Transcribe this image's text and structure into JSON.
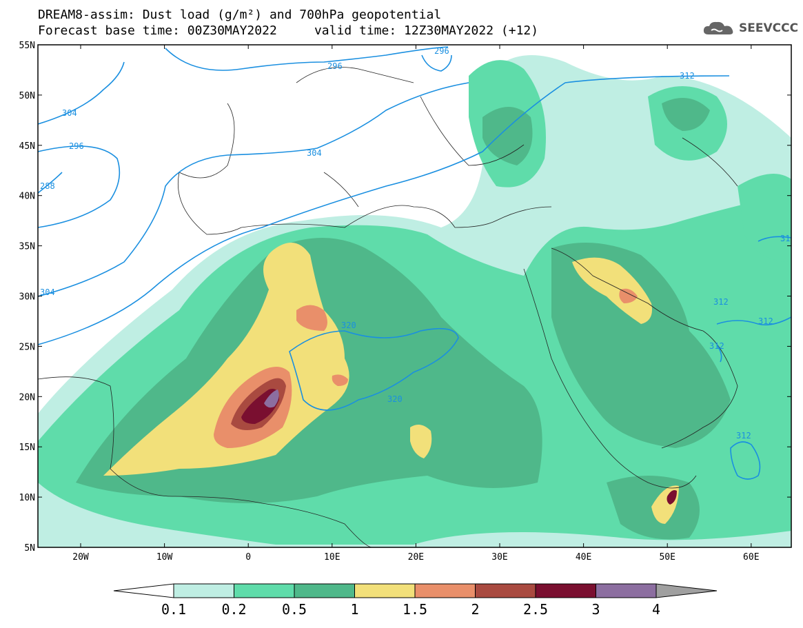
{
  "header": {
    "title_line1": "DREAM8-assim: Dust load (g/m²) and 700hPa geopotential",
    "title_line2": "Forecast base time: 00Z30MAY2022     valid time: 12Z30MAY2022 (+12)"
  },
  "logo": {
    "text": "SEEVCCC",
    "icon": "cloud-icon"
  },
  "map": {
    "lat_labels": [
      "55N",
      "50N",
      "45N",
      "40N",
      "35N",
      "30N",
      "25N",
      "20N",
      "15N",
      "10N",
      "5N"
    ],
    "lon_labels": [
      "20W",
      "10W",
      "0",
      "10E",
      "20E",
      "30E",
      "40E",
      "50E",
      "60E"
    ],
    "contour_labels": [
      "296",
      "296",
      "304",
      "296",
      "288",
      "304",
      "304",
      "312",
      "320",
      "320",
      "312",
      "312",
      "312",
      "312",
      "31"
    ]
  },
  "colorbar": {
    "labels": [
      "0.1",
      "0.2",
      "0.5",
      "1",
      "1.5",
      "2",
      "2.5",
      "3",
      "4"
    ],
    "colors": [
      "#bfeee3",
      "#5fdcaa",
      "#4fb88a",
      "#f2e07a",
      "#e98f6a",
      "#a94a40",
      "#7a0f30",
      "#8c6ea0"
    ],
    "under_color": "#ffffff",
    "over_color": "#a0a0a0"
  }
}
